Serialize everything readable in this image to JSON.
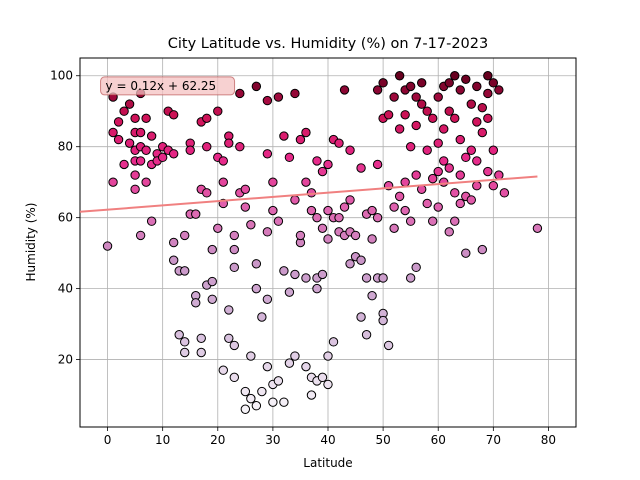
{
  "chart_data": {
    "type": "scatter",
    "title": "City Latitude vs. Humidity (%) on 7-17-2023",
    "xlabel": "Latitude",
    "ylabel": "Humidity (%)",
    "xlim": [
      -5,
      85
    ],
    "ylim": [
      1,
      105
    ],
    "xticks": [
      0,
      10,
      20,
      30,
      40,
      50,
      60,
      70,
      80
    ],
    "yticks": [
      20,
      40,
      60,
      80,
      100
    ],
    "grid": true,
    "colormap": "PuRd",
    "color_low": "#f7f4f9",
    "color_high": "#67001f",
    "marker_edge_color": "#000000",
    "regression": {
      "equation_text": "y = 0.12x + 62.25",
      "slope": 0.12,
      "intercept": 62.25,
      "x_range": [
        -5,
        78
      ],
      "color": "#f08080",
      "annotation_box_color": "#f4c2c2"
    },
    "points": [
      [
        0,
        52
      ],
      [
        1,
        94
      ],
      [
        1,
        84
      ],
      [
        1,
        70
      ],
      [
        2,
        82
      ],
      [
        2,
        87
      ],
      [
        3,
        75
      ],
      [
        3,
        90
      ],
      [
        4,
        92
      ],
      [
        4,
        81
      ],
      [
        5,
        84
      ],
      [
        5,
        79
      ],
      [
        5,
        76
      ],
      [
        5,
        72
      ],
      [
        5,
        68
      ],
      [
        5,
        88
      ],
      [
        6,
        95
      ],
      [
        6,
        84
      ],
      [
        6,
        80
      ],
      [
        6,
        55
      ],
      [
        6,
        76
      ],
      [
        7,
        79
      ],
      [
        7,
        70
      ],
      [
        7,
        88
      ],
      [
        8,
        83
      ],
      [
        8,
        59
      ],
      [
        8,
        75
      ],
      [
        9,
        78
      ],
      [
        9,
        76
      ],
      [
        10,
        77
      ],
      [
        10,
        80
      ],
      [
        11,
        90
      ],
      [
        11,
        79
      ],
      [
        12,
        78
      ],
      [
        12,
        89
      ],
      [
        12,
        53
      ],
      [
        12,
        48
      ],
      [
        13,
        45
      ],
      [
        13,
        27
      ],
      [
        14,
        25
      ],
      [
        14,
        22
      ],
      [
        14,
        55
      ],
      [
        14,
        45
      ],
      [
        15,
        61
      ],
      [
        15,
        81
      ],
      [
        15,
        79
      ],
      [
        16,
        61
      ],
      [
        16,
        38
      ],
      [
        16,
        36
      ],
      [
        17,
        87
      ],
      [
        17,
        68
      ],
      [
        17,
        26
      ],
      [
        17,
        22
      ],
      [
        18,
        88
      ],
      [
        18,
        67
      ],
      [
        18,
        80
      ],
      [
        18,
        41
      ],
      [
        19,
        51
      ],
      [
        19,
        37
      ],
      [
        19,
        42
      ],
      [
        20,
        90
      ],
      [
        20,
        77
      ],
      [
        20,
        57
      ],
      [
        21,
        70
      ],
      [
        21,
        76
      ],
      [
        21,
        64
      ],
      [
        21,
        17
      ],
      [
        22,
        83
      ],
      [
        22,
        81
      ],
      [
        22,
        34
      ],
      [
        22,
        26
      ],
      [
        23,
        24
      ],
      [
        23,
        55
      ],
      [
        23,
        51
      ],
      [
        23,
        46
      ],
      [
        23,
        15
      ],
      [
        24,
        80
      ],
      [
        24,
        67
      ],
      [
        24,
        95
      ],
      [
        25,
        63
      ],
      [
        25,
        68
      ],
      [
        25,
        11
      ],
      [
        25,
        6
      ],
      [
        26,
        58
      ],
      [
        26,
        21
      ],
      [
        26,
        9
      ],
      [
        27,
        97
      ],
      [
        27,
        47
      ],
      [
        27,
        40
      ],
      [
        27,
        7
      ],
      [
        28,
        32
      ],
      [
        28,
        11
      ],
      [
        29,
        78
      ],
      [
        29,
        93
      ],
      [
        29,
        56
      ],
      [
        29,
        37
      ],
      [
        29,
        18
      ],
      [
        30,
        70
      ],
      [
        30,
        62
      ],
      [
        30,
        13
      ],
      [
        30,
        8
      ],
      [
        31,
        94
      ],
      [
        31,
        59
      ],
      [
        31,
        14
      ],
      [
        32,
        83
      ],
      [
        32,
        45
      ],
      [
        32,
        8
      ],
      [
        33,
        77
      ],
      [
        33,
        39
      ],
      [
        33,
        19
      ],
      [
        34,
        95
      ],
      [
        34,
        65
      ],
      [
        34,
        44
      ],
      [
        34,
        21
      ],
      [
        35,
        82
      ],
      [
        35,
        53
      ],
      [
        35,
        55
      ],
      [
        36,
        84
      ],
      [
        36,
        70
      ],
      [
        36,
        43
      ],
      [
        36,
        18
      ],
      [
        37,
        67
      ],
      [
        37,
        62
      ],
      [
        37,
        15
      ],
      [
        37,
        10
      ],
      [
        38,
        76
      ],
      [
        38,
        60
      ],
      [
        38,
        43
      ],
      [
        38,
        40
      ],
      [
        38,
        14
      ],
      [
        39,
        73
      ],
      [
        39,
        57
      ],
      [
        39,
        44
      ],
      [
        39,
        15
      ],
      [
        40,
        75
      ],
      [
        40,
        62
      ],
      [
        40,
        54
      ],
      [
        40,
        21
      ],
      [
        40,
        13
      ],
      [
        41,
        82
      ],
      [
        41,
        60
      ],
      [
        41,
        25
      ],
      [
        42,
        81
      ],
      [
        42,
        60
      ],
      [
        42,
        56
      ],
      [
        43,
        96
      ],
      [
        43,
        63
      ],
      [
        43,
        55
      ],
      [
        44,
        79
      ],
      [
        44,
        65
      ],
      [
        44,
        47
      ],
      [
        44,
        56
      ],
      [
        45,
        49
      ],
      [
        45,
        55
      ],
      [
        46,
        74
      ],
      [
        46,
        48
      ],
      [
        46,
        32
      ],
      [
        47,
        61
      ],
      [
        47,
        43
      ],
      [
        47,
        27
      ],
      [
        48,
        62
      ],
      [
        48,
        54
      ],
      [
        48,
        38
      ],
      [
        49,
        96
      ],
      [
        49,
        75
      ],
      [
        49,
        60
      ],
      [
        49,
        43
      ],
      [
        50,
        98
      ],
      [
        50,
        88
      ],
      [
        50,
        43
      ],
      [
        50,
        33
      ],
      [
        50,
        31
      ],
      [
        51,
        89
      ],
      [
        51,
        69
      ],
      [
        51,
        24
      ],
      [
        52,
        94
      ],
      [
        52,
        63
      ],
      [
        52,
        57
      ],
      [
        53,
        100
      ],
      [
        53,
        85
      ],
      [
        53,
        66
      ],
      [
        54,
        96
      ],
      [
        54,
        89
      ],
      [
        54,
        70
      ],
      [
        54,
        62
      ],
      [
        55,
        97
      ],
      [
        55,
        80
      ],
      [
        55,
        59
      ],
      [
        55,
        43
      ],
      [
        56,
        94
      ],
      [
        56,
        86
      ],
      [
        56,
        72
      ],
      [
        56,
        46
      ],
      [
        57,
        98
      ],
      [
        57,
        92
      ],
      [
        57,
        68
      ],
      [
        58,
        90
      ],
      [
        58,
        79
      ],
      [
        58,
        64
      ],
      [
        59,
        88
      ],
      [
        59,
        71
      ],
      [
        59,
        59
      ],
      [
        60,
        94
      ],
      [
        60,
        81
      ],
      [
        60,
        73
      ],
      [
        60,
        63
      ],
      [
        61,
        97
      ],
      [
        61,
        85
      ],
      [
        61,
        76
      ],
      [
        61,
        70
      ],
      [
        62,
        98
      ],
      [
        62,
        90
      ],
      [
        62,
        74
      ],
      [
        62,
        56
      ],
      [
        63,
        100
      ],
      [
        63,
        88
      ],
      [
        63,
        67
      ],
      [
        63,
        59
      ],
      [
        64,
        96
      ],
      [
        64,
        82
      ],
      [
        64,
        72
      ],
      [
        64,
        64
      ],
      [
        65,
        99
      ],
      [
        65,
        77
      ],
      [
        65,
        66
      ],
      [
        65,
        50
      ],
      [
        66,
        92
      ],
      [
        66,
        79
      ],
      [
        66,
        65
      ],
      [
        67,
        97
      ],
      [
        67,
        87
      ],
      [
        67,
        76
      ],
      [
        67,
        69
      ],
      [
        68,
        91
      ],
      [
        68,
        84
      ],
      [
        68,
        51
      ],
      [
        69,
        100
      ],
      [
        69,
        95
      ],
      [
        69,
        88
      ],
      [
        69,
        73
      ],
      [
        70,
        98
      ],
      [
        70,
        79
      ],
      [
        70,
        69
      ],
      [
        71,
        96
      ],
      [
        71,
        72
      ],
      [
        72,
        67
      ],
      [
        78,
        57
      ]
    ]
  }
}
